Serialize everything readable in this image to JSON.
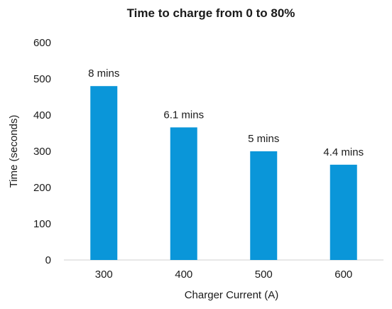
{
  "chart_data": {
    "type": "bar",
    "title": "Time to charge from 0 to 80%",
    "xlabel": "Charger Current (A)",
    "ylabel": "Time (seconds)",
    "categories": [
      "300",
      "400",
      "500",
      "600"
    ],
    "values": [
      480,
      366,
      300,
      263
    ],
    "data_labels": [
      "8 mins",
      "6.1 mins",
      "5 mins",
      "4.4 mins"
    ],
    "ylim": [
      0,
      600
    ],
    "yticks": [
      0,
      100,
      200,
      300,
      400,
      500,
      600
    ],
    "grid": false,
    "legend": "none",
    "bar_color": "#0a96d9"
  }
}
